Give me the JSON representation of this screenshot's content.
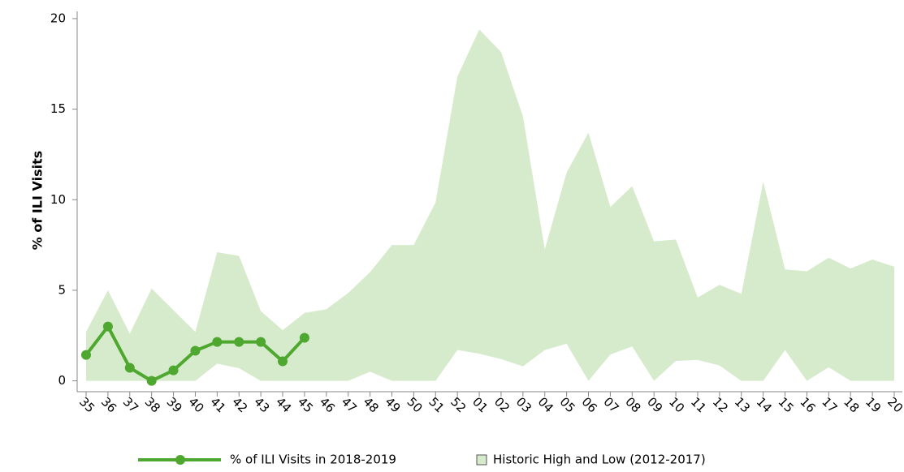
{
  "chart_data": {
    "type": "line-band",
    "y_label": "% of ILI Visits",
    "categories": [
      "35",
      "36",
      "37",
      "38",
      "39",
      "40",
      "41",
      "42",
      "43",
      "44",
      "45",
      "46",
      "47",
      "48",
      "49",
      "50",
      "51",
      "52",
      "01",
      "02",
      "03",
      "04",
      "05",
      "06",
      "07",
      "08",
      "09",
      "10",
      "11",
      "12",
      "13",
      "14",
      "15",
      "16",
      "17",
      "18",
      "19",
      "20"
    ],
    "series": [
      {
        "name": "% of ILI Visits in 2018-2019",
        "color": "#4ea72e",
        "values": [
          1.43,
          3.0,
          0.72,
          0,
          0.58,
          1.66,
          2.15,
          2.15,
          2.15,
          1.08,
          2.38,
          null,
          null,
          null,
          null,
          null,
          null,
          null,
          null,
          null,
          null,
          null,
          null,
          null,
          null,
          null,
          null,
          null,
          null,
          null,
          null,
          null,
          null,
          null,
          null,
          null,
          null,
          null
        ]
      },
      {
        "name": "Historic High and Low (2012-2017)",
        "color": "#d5ebcb",
        "high": [
          2.7,
          5.0,
          2.6,
          5.1,
          3.9,
          2.7,
          7.1,
          6.9,
          3.85,
          2.8,
          3.75,
          3.95,
          4.85,
          6.0,
          7.5,
          7.5,
          9.85,
          16.8,
          19.4,
          18.15,
          14.6,
          7.25,
          11.5,
          13.7,
          9.6,
          10.75,
          7.7,
          7.8,
          4.6,
          5.3,
          4.8,
          11.0,
          6.15,
          6.05,
          6.8,
          6.2,
          6.7,
          6.3
        ],
        "low": [
          0,
          0,
          0,
          0,
          0,
          0,
          0.95,
          0.7,
          0,
          0,
          0,
          0,
          0,
          0.5,
          0,
          0,
          0,
          1.7,
          1.5,
          1.2,
          0.8,
          1.7,
          2.05,
          0,
          1.45,
          1.9,
          0,
          1.1,
          1.15,
          0.85,
          0,
          0,
          1.7,
          0,
          0.75,
          0,
          0,
          0
        ]
      }
    ],
    "ylim": [
      -0.6,
      20.4
    ],
    "yticks": [
      0,
      5,
      10,
      15,
      20
    ]
  }
}
